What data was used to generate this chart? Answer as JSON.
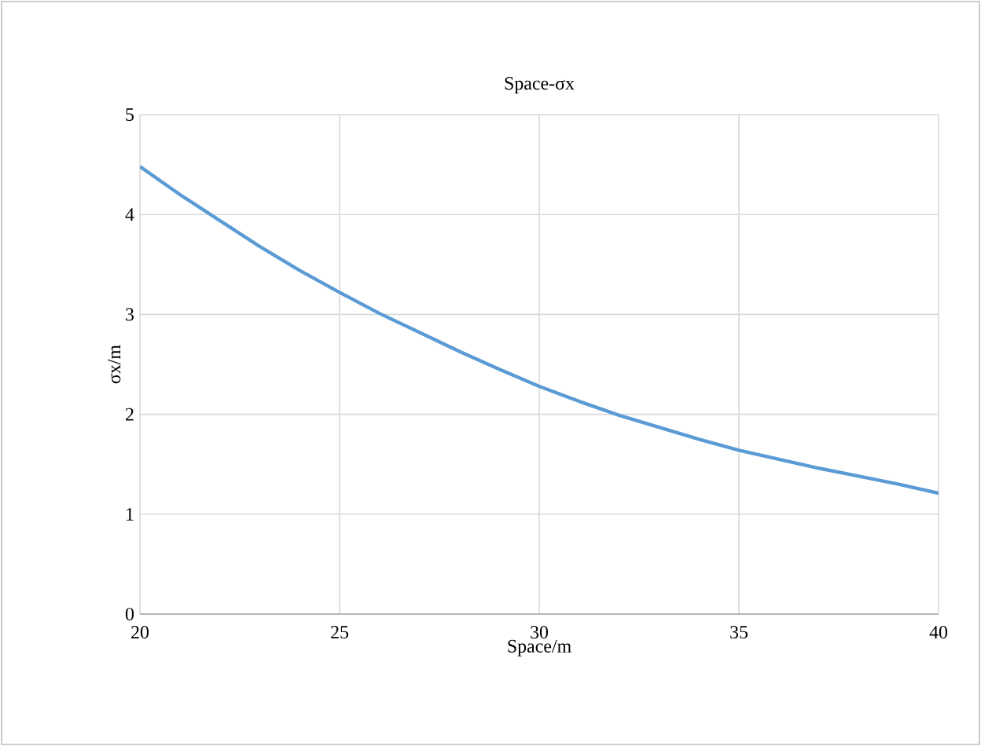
{
  "chart_data": {
    "type": "line",
    "title": "Space-σx",
    "xlabel": "Space/m",
    "ylabel": "σx/m",
    "x": [
      20,
      21,
      22,
      23,
      24,
      25,
      26,
      27,
      28,
      29,
      30,
      31,
      32,
      33,
      34,
      35,
      36,
      37,
      38,
      39,
      40
    ],
    "series": [
      {
        "color": "#5b9bd5",
        "values": [
          4.48,
          4.2,
          3.94,
          3.68,
          3.44,
          3.22,
          3.01,
          2.82,
          2.63,
          2.45,
          2.28,
          2.13,
          1.99,
          1.87,
          1.75,
          1.64,
          1.55,
          1.46,
          1.38,
          1.3,
          1.21
        ]
      }
    ],
    "xlim": [
      20,
      40
    ],
    "ylim": [
      0,
      5
    ],
    "xticks": [
      20,
      25,
      30,
      35,
      40
    ],
    "yticks": [
      0,
      1,
      2,
      3,
      4,
      5
    ],
    "grid": true,
    "marker": "none",
    "line_style": "solid"
  }
}
